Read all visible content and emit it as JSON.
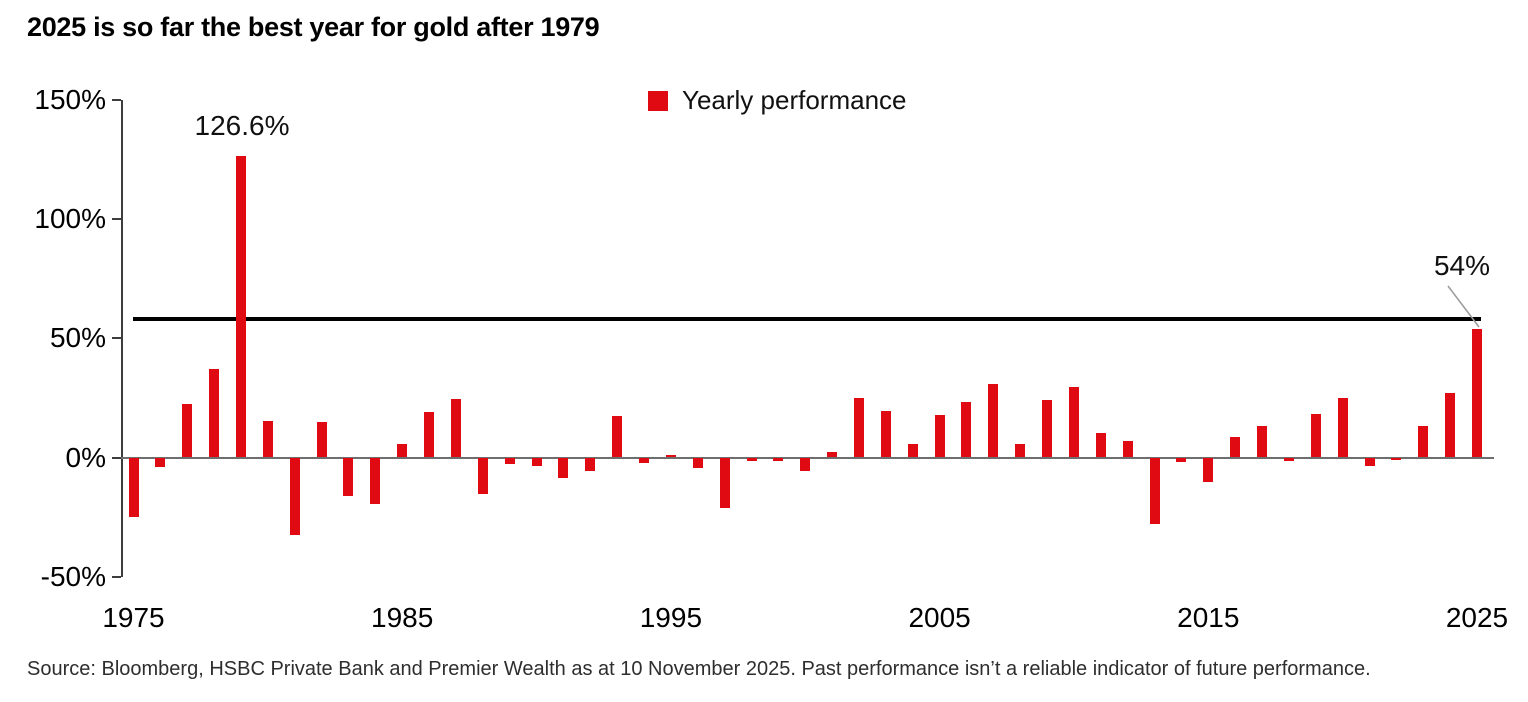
{
  "header": {
    "title": "2025 is so far the best year for gold after 1979"
  },
  "legend": {
    "label": "Yearly performance",
    "swatch_color": "#e00b12"
  },
  "annotations": {
    "peak_label": "126.6%",
    "latest_label": "54%"
  },
  "source": "Source: Bloomberg, HSBC Private Bank and Premier Wealth as at 10 November 2025. Past performance isn’t a reliable indicator of future performance.",
  "chart_data": {
    "type": "bar",
    "title": "2025 is so far the best year for gold after 1979",
    "series_name": "Yearly performance",
    "xlabel": "",
    "ylabel": "",
    "ylim": [
      -50,
      150
    ],
    "grid": false,
    "legend_position": "top-center",
    "bar_color": "#e00b12",
    "reference_line": {
      "value": 58,
      "color": "#000000"
    },
    "yticks": [
      {
        "value": 150,
        "label": "150%"
      },
      {
        "value": 100,
        "label": "100%"
      },
      {
        "value": 50,
        "label": "50%"
      },
      {
        "value": 0,
        "label": "0%"
      },
      {
        "value": -50,
        "label": "-50%"
      }
    ],
    "xticks": [
      {
        "value": 1975,
        "label": "1975"
      },
      {
        "value": 1985,
        "label": "1985"
      },
      {
        "value": 1995,
        "label": "1995"
      },
      {
        "value": 2005,
        "label": "2005"
      },
      {
        "value": 2015,
        "label": "2015"
      },
      {
        "value": 2025,
        "label": "2025"
      }
    ],
    "x": [
      1975,
      1976,
      1977,
      1978,
      1979,
      1980,
      1981,
      1982,
      1983,
      1984,
      1985,
      1986,
      1987,
      1988,
      1989,
      1990,
      1991,
      1992,
      1993,
      1994,
      1995,
      1996,
      1997,
      1998,
      1999,
      2000,
      2001,
      2002,
      2003,
      2004,
      2005,
      2006,
      2007,
      2008,
      2009,
      2010,
      2011,
      2012,
      2013,
      2014,
      2015,
      2016,
      2017,
      2018,
      2019,
      2020,
      2021,
      2022,
      2023,
      2024,
      2025
    ],
    "values": [
      -24.8,
      -4.1,
      22.6,
      37.0,
      126.6,
      15.2,
      -32.6,
      14.9,
      -16.3,
      -19.4,
      5.8,
      19.0,
      24.5,
      -15.3,
      -2.8,
      -3.7,
      -8.6,
      -5.7,
      17.6,
      -2.2,
      1.0,
      -4.6,
      -21.4,
      -1.5,
      -1.5,
      -5.7,
      2.1,
      24.8,
      19.4,
      5.5,
      17.9,
      23.2,
      30.9,
      5.8,
      24.0,
      29.6,
      10.1,
      7.1,
      -28.0,
      -1.7,
      -10.4,
      8.6,
      13.1,
      -1.6,
      18.3,
      25.1,
      -3.6,
      -1.0,
      13.1,
      27.2,
      54.0
    ],
    "point_annotations": [
      {
        "x": 1979,
        "label": "126.6%"
      },
      {
        "x": 2025,
        "label": "54%"
      }
    ]
  }
}
